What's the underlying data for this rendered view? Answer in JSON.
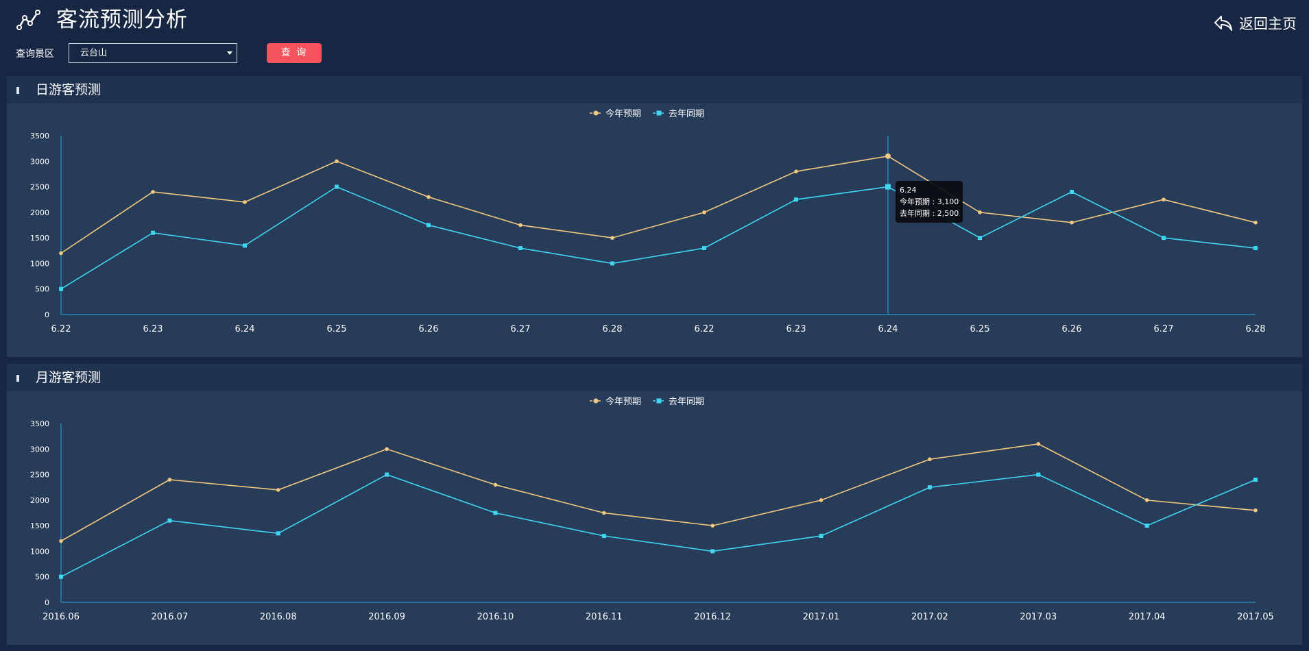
{
  "header": {
    "title": "客流预测分析",
    "back_label": "返回主页",
    "logo_icon": "line-chart-icon",
    "back_icon": "reply-arrow-icon"
  },
  "query": {
    "label": "查询景区",
    "selected": "云台山",
    "button_label": "查 询"
  },
  "colors": {
    "forecast": "#f5c87f",
    "last_year": "#3fd6f2",
    "button": "#f5525e"
  },
  "daily": {
    "title": "日游客预测",
    "tooltip": {
      "category": "6.24",
      "lines": [
        "今年预期 : 3,100",
        "去年同期 : 2,500"
      ]
    }
  },
  "monthly": {
    "title": "月游客预测"
  },
  "chart_data": [
    {
      "type": "line",
      "title": "日游客预测",
      "categories": [
        "6.22",
        "6.23",
        "6.24",
        "6.25",
        "6.26",
        "6.27",
        "6.28",
        "6.22",
        "6.23",
        "6.24",
        "6.25",
        "6.26",
        "6.27",
        "6.28"
      ],
      "series": [
        {
          "name": "今年预期",
          "values": [
            1200,
            2400,
            2200,
            3000,
            2300,
            1750,
            1500,
            2000,
            2800,
            3100,
            2000,
            1800,
            2250,
            1800
          ]
        },
        {
          "name": "去年同期",
          "values": [
            500,
            1600,
            1350,
            2500,
            1750,
            1300,
            1000,
            1300,
            2250,
            2500,
            1500,
            2400,
            1500,
            1300
          ]
        }
      ],
      "yticks": [
        0,
        500,
        1000,
        1500,
        2000,
        2500,
        3000,
        3500
      ],
      "ylim": [
        0,
        3500
      ],
      "legend": "top-center",
      "highlight_category_index": 9
    },
    {
      "type": "line",
      "title": "月游客预测",
      "categories": [
        "2016.06",
        "2016.07",
        "2016.08",
        "2016.09",
        "2016.10",
        "2016.11",
        "2016.12",
        "2017.01",
        "2017.02",
        "2017.03",
        "2017.04",
        "2017.05"
      ],
      "series": [
        {
          "name": "今年预期",
          "values": [
            1200,
            2400,
            2200,
            3000,
            2300,
            1750,
            1500,
            2000,
            2800,
            3100,
            2000,
            1800
          ]
        },
        {
          "name": "去年同期",
          "values": [
            500,
            1600,
            1350,
            2500,
            1750,
            1300,
            1000,
            1300,
            2250,
            2500,
            1500,
            2400
          ]
        }
      ],
      "yticks": [
        0,
        500,
        1000,
        1500,
        2000,
        2500,
        3000,
        3500
      ],
      "ylim": [
        0,
        3500
      ],
      "legend": "top-center"
    }
  ]
}
